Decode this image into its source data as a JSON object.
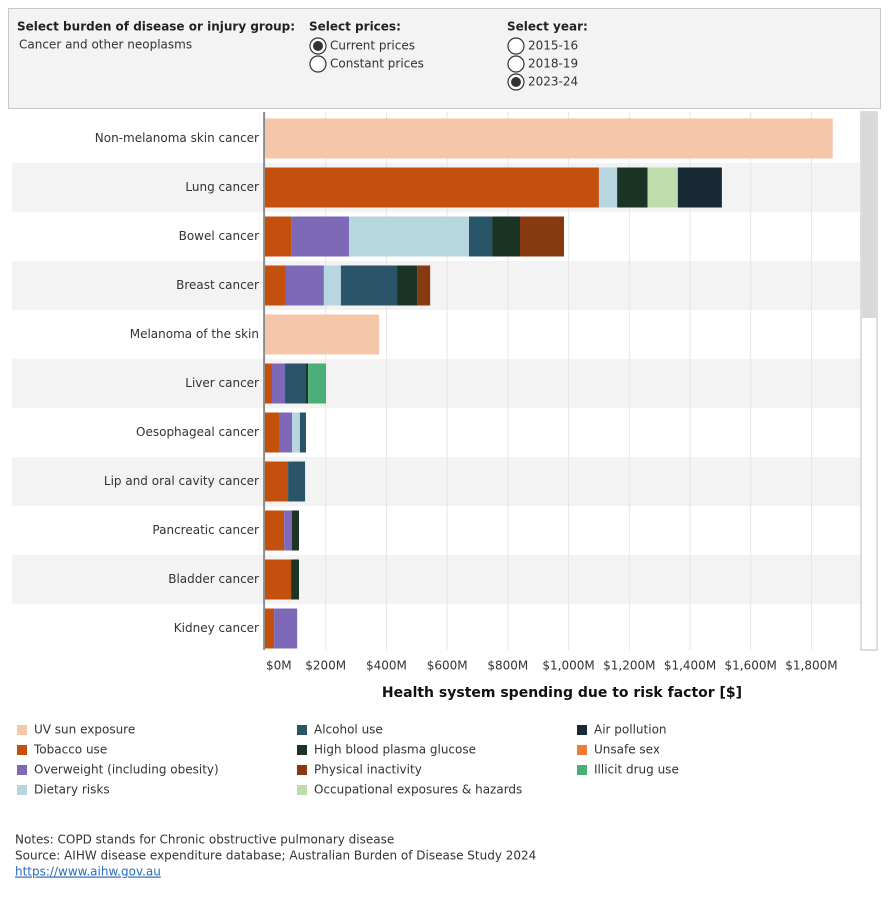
{
  "controls": {
    "burden": {
      "label": "Select burden of disease or injury group:",
      "value": "Cancer and other neoplasms"
    },
    "prices": {
      "label": "Select prices:",
      "options": [
        {
          "label": "Current prices",
          "checked": true
        },
        {
          "label": "Constant prices",
          "checked": false
        }
      ]
    },
    "year": {
      "label": "Select year:",
      "options": [
        {
          "label": "2015-16",
          "checked": false
        },
        {
          "label": "2018-19",
          "checked": false
        },
        {
          "label": "2023-24",
          "checked": true
        }
      ]
    }
  },
  "chart_data": {
    "type": "stacked-horizontal-bar",
    "x_label": "Health system spending due to risk factor [$]",
    "categories": [
      "Non-melanoma skin cancer",
      "Lung cancer",
      "Bowel cancer",
      "Breast cancer",
      "Melanoma of the skin",
      "Liver cancer",
      "Oesophageal cancer",
      "Lip and oral cavity cancer",
      "Pancreatic cancer",
      "Bladder cancer",
      "Kidney cancer"
    ],
    "series": [
      {
        "name": "UV sun exposure",
        "color": "#f5c6a9",
        "values": [
          1870,
          null,
          null,
          null,
          376,
          null,
          null,
          null,
          null,
          null,
          null
        ]
      },
      {
        "name": "Tobacco use",
        "color": "#c4500e",
        "values": [
          null,
          1100,
          86,
          69,
          null,
          23,
          49,
          76,
          63,
          86,
          30
        ]
      },
      {
        "name": "Overweight (including obesity)",
        "color": "#7e69b9",
        "values": [
          null,
          null,
          191,
          125,
          null,
          43,
          40,
          null,
          26,
          null,
          76
        ]
      },
      {
        "name": "Dietary risks",
        "color": "#b8d6e0",
        "values": [
          null,
          60,
          395,
          56,
          null,
          null,
          26,
          null,
          null,
          null,
          null
        ]
      },
      {
        "name": "Alcohol use",
        "color": "#2a5568",
        "values": [
          null,
          null,
          76,
          185,
          null,
          69,
          20,
          56,
          null,
          null,
          null
        ]
      },
      {
        "name": "High blood plasma glucose",
        "color": "#1c3425",
        "values": [
          null,
          100,
          92,
          66,
          null,
          7,
          null,
          null,
          23,
          26,
          null
        ]
      },
      {
        "name": "Physical inactivity",
        "color": "#873a10",
        "values": [
          null,
          null,
          145,
          43,
          null,
          null,
          null,
          null,
          null,
          null,
          null
        ]
      },
      {
        "name": "Occupational exposures & hazards",
        "color": "#bfdcad",
        "values": [
          null,
          100,
          null,
          null,
          null,
          null,
          null,
          null,
          null,
          null,
          null
        ]
      },
      {
        "name": "Air pollution",
        "color": "#182a35",
        "values": [
          null,
          145,
          null,
          null,
          null,
          null,
          null,
          null,
          null,
          null,
          null
        ]
      },
      {
        "name": "Unsafe sex",
        "color": "#ef7d36",
        "values": [
          null,
          null,
          null,
          null,
          null,
          null,
          null,
          null,
          null,
          null,
          null
        ]
      },
      {
        "name": "Illicit drug use",
        "color": "#4bae79",
        "values": [
          null,
          null,
          null,
          null,
          null,
          59,
          null,
          null,
          null,
          null,
          null
        ]
      }
    ],
    "xlim": [
      0,
      1960
    ],
    "xticks": [
      {
        "value": 0,
        "label": "$0M"
      },
      {
        "value": 200,
        "label": "$200M"
      },
      {
        "value": 400,
        "label": "$400M"
      },
      {
        "value": 600,
        "label": "$600M"
      },
      {
        "value": 800,
        "label": "$800M"
      },
      {
        "value": 1000,
        "label": "$1,000M"
      },
      {
        "value": 1200,
        "label": "$1,200M"
      },
      {
        "value": 1400,
        "label": "$1,400M"
      },
      {
        "value": 1600,
        "label": "$1,600M"
      },
      {
        "value": 1800,
        "label": "$1,800M"
      }
    ],
    "grid": true
  },
  "notes": [
    "Notes: COPD stands for Chronic obstructive pulmonary disease",
    "Source:  AIHW disease expenditure database; Australian Burden of Disease Study 2024"
  ],
  "link": "https://www.aihw.gov.au"
}
